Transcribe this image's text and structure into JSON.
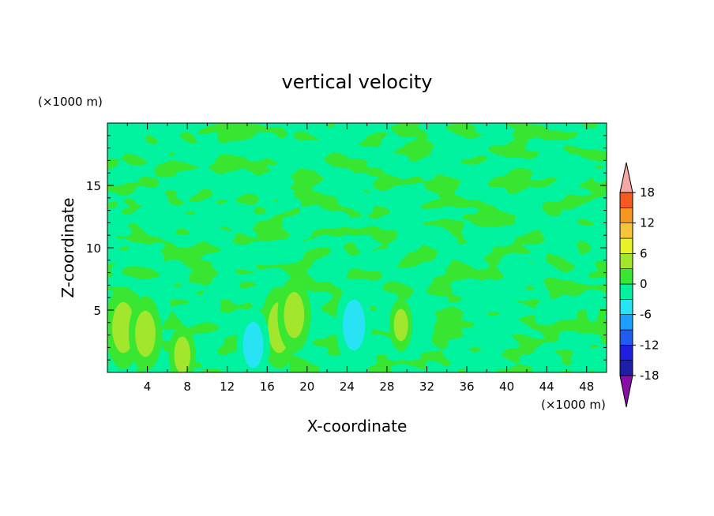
{
  "chart_data": {
    "type": "heatmap",
    "title": "vertical velocity",
    "xlabel": "X-coordinate",
    "ylabel": "Z-coordinate",
    "x_unit": "(×1000 m)",
    "y_unit": "(×1000 m)",
    "xlim": [
      0,
      50
    ],
    "ylim": [
      0,
      20
    ],
    "x_ticks": [
      "4",
      "8",
      "12",
      "16",
      "20",
      "24",
      "28",
      "32",
      "36",
      "40",
      "44",
      "48"
    ],
    "y_ticks": [
      "5",
      "10",
      "15"
    ],
    "colorbar": {
      "labels": [
        "18",
        "12",
        "6",
        "0",
        "-6",
        "-12",
        "-18"
      ],
      "levels": [
        -21,
        -18,
        -15,
        -12,
        -9,
        -6,
        -3,
        0,
        3,
        6,
        9,
        12,
        15,
        18,
        21
      ],
      "colors": [
        "#7c0da6",
        "#3d2ba4",
        "#1e1ea6",
        "#1f1fe0",
        "#1f5df2",
        "#1e9fff",
        "#28e3f4",
        "#00f29e",
        "#39e631",
        "#a3e62e",
        "#e8f229",
        "#f8c43a",
        "#f5961e",
        "#f55a1e",
        "#e61e1e",
        "#f5a3a3"
      ],
      "under_color": "#8a0fa8",
      "over_color": "#f5a7a5"
    },
    "features": [
      {
        "x": 1.6,
        "z": 3.6,
        "value": 5.5
      },
      {
        "x": 3.8,
        "z": 3.1,
        "value": 5
      },
      {
        "x": 7.5,
        "z": 1.4,
        "value": 4
      },
      {
        "x": 17.2,
        "z": 3.6,
        "value": 5.5
      },
      {
        "x": 18.7,
        "z": 4.6,
        "value": 5
      },
      {
        "x": 29.4,
        "z": 3.8,
        "value": 3.5
      },
      {
        "x": 14.6,
        "z": 2.2,
        "value": -5
      },
      {
        "x": 24.7,
        "z": 3.8,
        "value": -5.5
      },
      {
        "x": 10.5,
        "z": 5.5,
        "value": -2.5
      },
      {
        "x": 5.7,
        "z": 5.3,
        "value": -2
      },
      {
        "x": 31.8,
        "z": 4.5,
        "value": -2
      },
      {
        "x": 48.6,
        "z": 5.2,
        "value": -2
      }
    ],
    "background_value": 1,
    "grid": false,
    "legend_placement": "colorbar-right"
  }
}
